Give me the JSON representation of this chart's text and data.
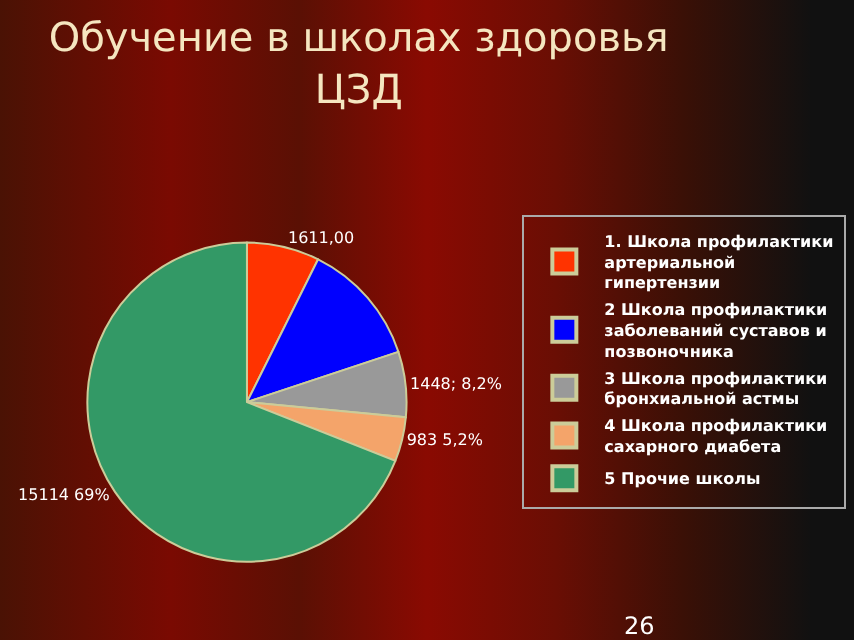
{
  "chart_data": {
    "type": "pie",
    "title": "Обучение в школах здоровья ЦЗД",
    "categories": [
      "1. Школа профилактики артериальной гипертензии",
      "2 Школа профилактики заболеваний суставов и позвоночника",
      "3 Школа профилактики бронхиальной астмы",
      "4 Школа профилактики сахарного диабета",
      "5 Прочие школы"
    ],
    "values": [
      1611,
      2748,
      1448,
      983,
      15114
    ],
    "value_labels": [
      "1611,00",
      null,
      "1448; 8,2%",
      "983 5,2%",
      "15114 69%"
    ],
    "colors": [
      "#ff3300",
      "#0000ff",
      "#999999",
      "#f4a46a",
      "#339966"
    ],
    "legend": "right",
    "annotations": [
      "26"
    ]
  }
}
